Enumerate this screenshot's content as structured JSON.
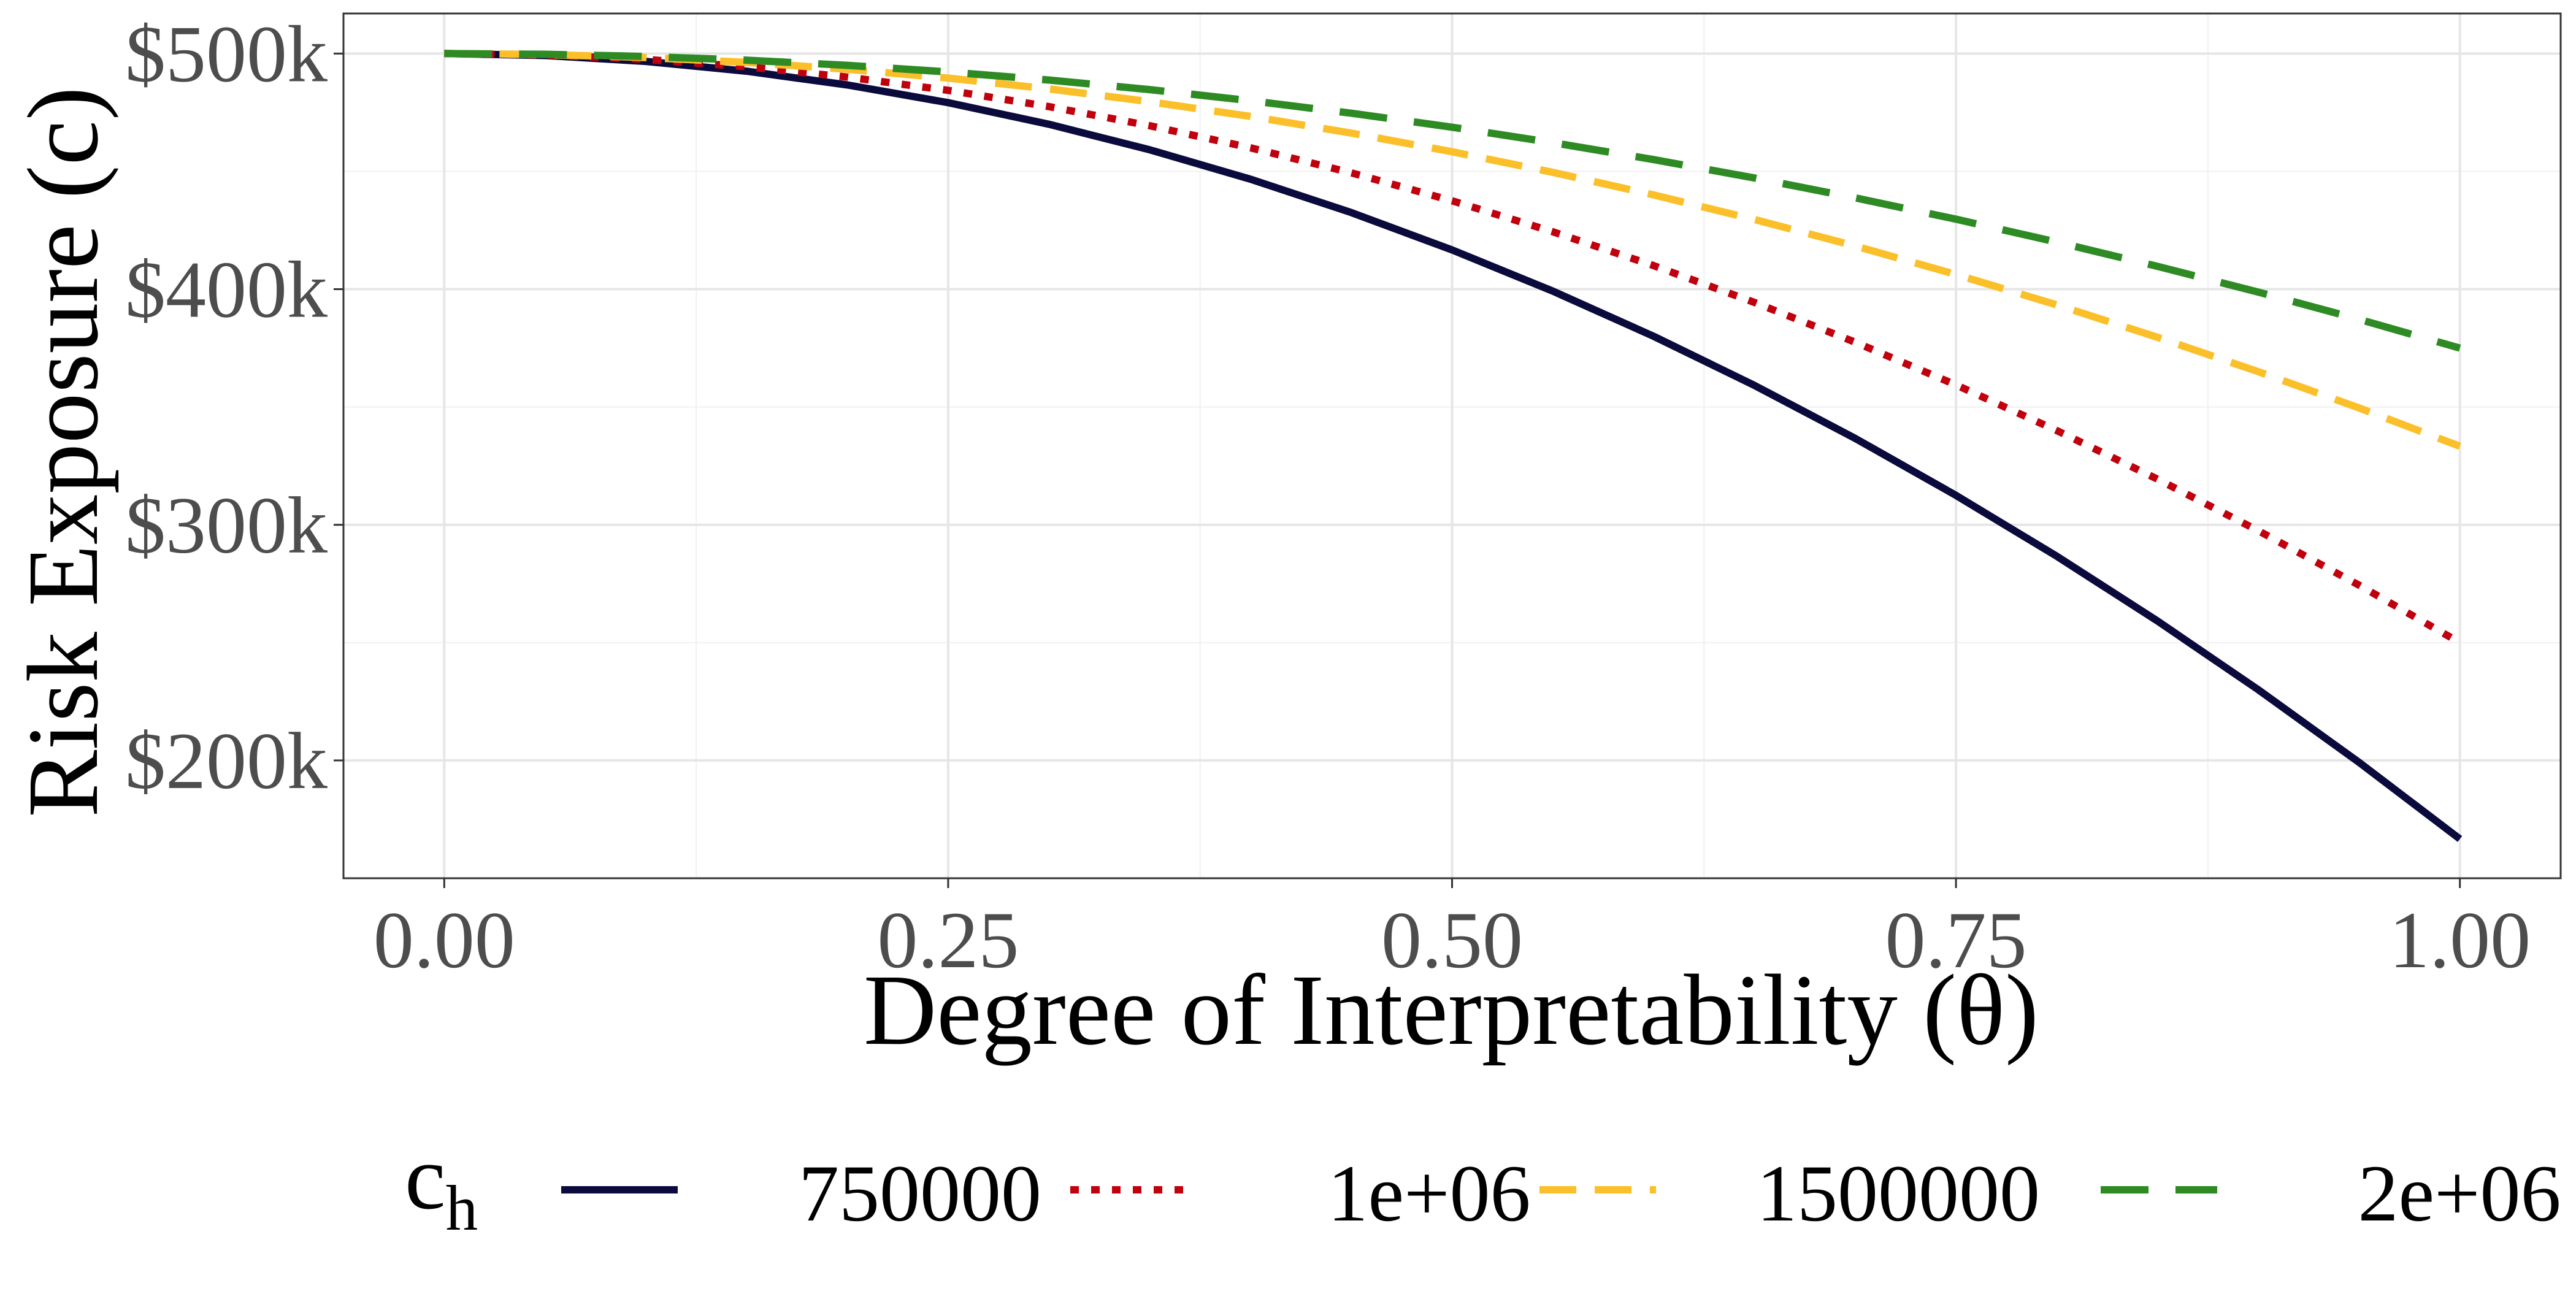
{
  "chart_data": {
    "type": "line",
    "title": "",
    "xlabel": "Degree of Interpretability (θ)",
    "ylabel": "Risk Exposure (c)",
    "xlim": [
      -0.05,
      1.05
    ],
    "ylim": [
      150000,
      517000
    ],
    "x_ticks": [
      0.0,
      0.25,
      0.5,
      0.75,
      1.0
    ],
    "x_tick_labels": [
      "0.00",
      "0.25",
      "0.50",
      "0.75",
      "1.00"
    ],
    "y_ticks": [
      200000,
      300000,
      400000,
      500000
    ],
    "y_tick_labels": [
      "$200k",
      "$300k",
      "$400k",
      "$500k"
    ],
    "grid": true,
    "legend": {
      "title_main": "c",
      "title_sub": "h",
      "position": "bottom"
    },
    "x": [
      0.0,
      0.05,
      0.1,
      0.15,
      0.2,
      0.25,
      0.3,
      0.35,
      0.4,
      0.45,
      0.5,
      0.55,
      0.6,
      0.65,
      0.7,
      0.75,
      0.8,
      0.85,
      0.9,
      0.95,
      1.0
    ],
    "series": [
      {
        "name": "750000",
        "color": "#0a0a3c",
        "dash": "solid",
        "values": [
          500000,
          499167,
          496667,
          492500,
          486667,
          479167,
          470000,
          459167,
          446667,
          432500,
          416667,
          399167,
          380000,
          359167,
          336667,
          312500,
          286667,
          259167,
          230000,
          199167,
          166667
        ]
      },
      {
        "name": "1e+06",
        "color": "#c0000c",
        "dash": "dotted",
        "values": [
          500000,
          499375,
          497500,
          494375,
          490000,
          484375,
          477500,
          469375,
          460000,
          449375,
          437500,
          424375,
          410000,
          394375,
          377500,
          359375,
          340000,
          319375,
          297500,
          274375,
          250000
        ]
      },
      {
        "name": "1500000",
        "color": "#fbbf2a",
        "dash": "dashed",
        "values": [
          500000,
          499583,
          498333,
          496250,
          493333,
          489583,
          485000,
          479583,
          473333,
          466250,
          458333,
          449583,
          440000,
          429583,
          418333,
          406250,
          393333,
          379583,
          365000,
          349583,
          333333
        ]
      },
      {
        "name": "2e+06",
        "color": "#2e8b24",
        "dash": "longdash",
        "values": [
          500000,
          499688,
          498750,
          497188,
          495000,
          492188,
          488750,
          484688,
          480000,
          474688,
          468750,
          462188,
          455000,
          447188,
          438750,
          429688,
          420000,
          409688,
          398750,
          387188,
          375000
        ]
      }
    ]
  }
}
